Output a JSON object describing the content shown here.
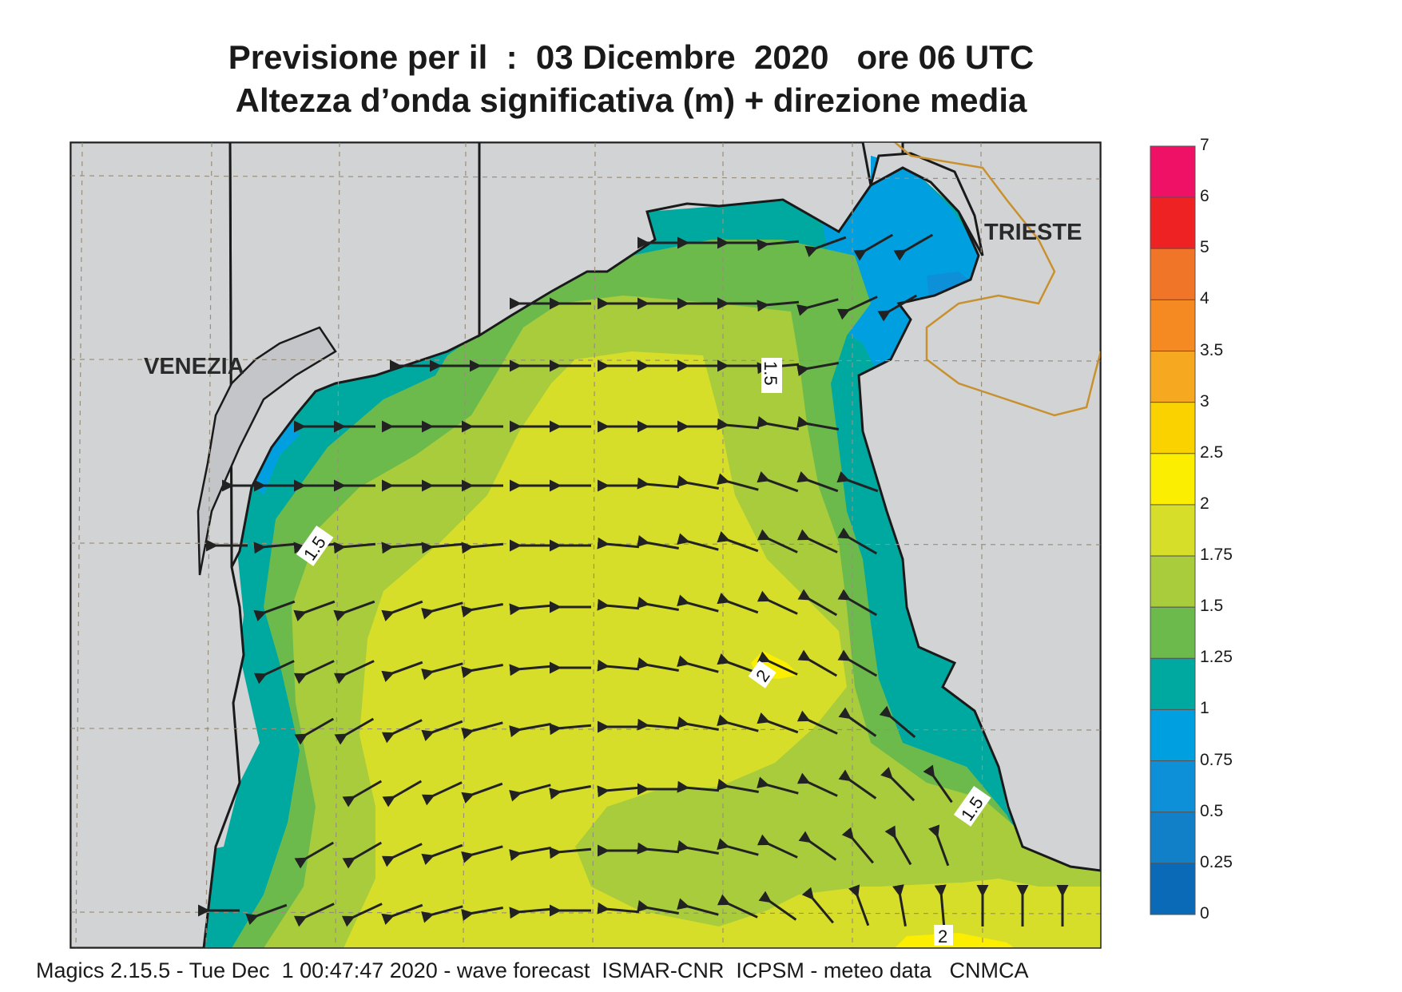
{
  "title": {
    "line1": "Previsione per il  :  03 Dicembre  2020   ore 06 UTC",
    "line2": "Altezza d’onda significativa (m) + direzione media"
  },
  "cities": {
    "venezia": "VENEZIA",
    "trieste": "TRIESTE"
  },
  "contour_labels": {
    "a": "1.5",
    "b": "1.5",
    "c": "1.5",
    "d": "2",
    "e": "2"
  },
  "footer": "Magics 2.15.5 - Tue Dec  1 00:47:47 2020 - wave forecast  ISMAR-CNR  ICPSM - meteo data   CNMCA",
  "colorbar": {
    "labels": [
      "7",
      "6",
      "5",
      "4",
      "3.5",
      "3",
      "2.5",
      "2",
      "1.75",
      "1.5",
      "1.25",
      "1",
      "0.75",
      "0.5",
      "0.25",
      "0"
    ],
    "colors": [
      "#ee1166",
      "#ee2222",
      "#f17528",
      "#f58a22",
      "#f5a820",
      "#fad200",
      "#fbee00",
      "#d6de2a",
      "#a8cc3c",
      "#6cba4c",
      "#00a9a0",
      "#00a0e0",
      "#0e90d8",
      "#1280c8",
      "#0a6ab8"
    ]
  },
  "palette": {
    "land": "#d2d3d5",
    "sea_2": "#d6de2a",
    "sea_175": "#a8cc3c",
    "sea_15": "#6cba4c",
    "sea_125": "#00a9a0",
    "sea_1": "#00a0e0",
    "sea_075": "#0e90d8",
    "border": "#c8912e"
  }
}
